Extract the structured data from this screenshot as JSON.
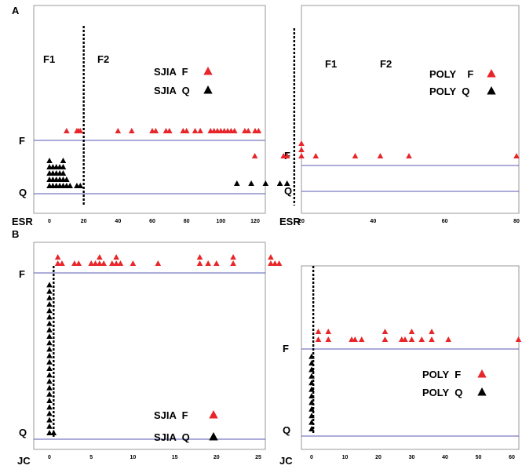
{
  "figure": {
    "panel_labels": [
      "A",
      "B"
    ],
    "axis_row_labels": [
      "ESR",
      "ESR",
      "JC",
      "JC"
    ]
  },
  "colors": {
    "flare": "#e8262a",
    "quiescent": "#000000",
    "frame": "#9a9a9a",
    "reference_line": "#5a5ab4",
    "cutoff_line": "#000000"
  },
  "chart_data": [
    {
      "type": "scatter",
      "panel": "A",
      "measure": "ESR",
      "xlim": [
        -5,
        125
      ],
      "xticks": [
        0,
        20,
        40,
        60,
        80,
        100,
        120
      ],
      "y_levels": [
        "Q",
        "F"
      ],
      "cutoff_x": 20,
      "region_labels": [
        "F1",
        "F2"
      ],
      "legend": [
        {
          "label": "SJIA  F",
          "series": "F",
          "marker": "triangle"
        },
        {
          "label": "SJIA  Q",
          "series": "Q",
          "marker": "triangle"
        }
      ],
      "series": [
        {
          "name": "F",
          "color": "#e8262a",
          "x": [
            10,
            16,
            17,
            18,
            40,
            48,
            60,
            62,
            68,
            70,
            78,
            80,
            85,
            88,
            94,
            96,
            98,
            100,
            102,
            104,
            106,
            108,
            114,
            116,
            120,
            122
          ]
        },
        {
          "name": "Q",
          "color": "#000000",
          "x": [
            0,
            0,
            0,
            0,
            0,
            2,
            2,
            2,
            2,
            4,
            4,
            4,
            4,
            6,
            6,
            6,
            6,
            8,
            8,
            8,
            8,
            8,
            10,
            10,
            12,
            16,
            18
          ]
        }
      ]
    },
    {
      "type": "scatter",
      "panel": "A",
      "measure": "ESR",
      "xlim": [
        0,
        82
      ],
      "xticks": [
        20,
        40,
        60,
        80
      ],
      "y_levels": [
        "Q",
        "F"
      ],
      "cutoff_x": 18,
      "region_labels": [
        "F1",
        "F2"
      ],
      "legend": [
        {
          "label": "POLY    F",
          "series": "F",
          "marker": "triangle"
        },
        {
          "label": "POLY  Q",
          "series": "Q",
          "marker": "triangle"
        }
      ],
      "series": [
        {
          "name": "F",
          "color": "#e8262a",
          "x": [
            7,
            15,
            16,
            20,
            20,
            20,
            24,
            35,
            42,
            50,
            80
          ]
        },
        {
          "name": "Q",
          "color": "#000000",
          "x": [
            2,
            6,
            10,
            14,
            16
          ]
        }
      ]
    },
    {
      "type": "scatter",
      "panel": "B",
      "measure": "JC",
      "xlim": [
        -1,
        28
      ],
      "xticks": [
        0,
        5,
        10,
        15,
        20,
        25
      ],
      "y_levels": [
        "Q",
        "F"
      ],
      "cutoff_x": 0.5,
      "legend": [
        {
          "label": "SJIA  F",
          "series": "F",
          "marker": "triangle"
        },
        {
          "label": "SJIA  Q",
          "series": "Q",
          "marker": "triangle"
        }
      ],
      "series": [
        {
          "name": "F",
          "color": "#e8262a",
          "x": [
            1,
            1,
            1.5,
            3,
            3.5,
            5,
            5.5,
            6,
            6,
            6.5,
            7.5,
            8,
            8,
            8.5,
            10,
            13,
            18,
            18,
            19,
            20,
            22,
            22,
            26.5,
            26.5,
            27,
            27.5
          ]
        },
        {
          "name": "Q",
          "color": "#000000",
          "x": [
            0,
            0,
            0,
            0,
            0,
            0,
            0,
            0,
            0,
            0,
            0,
            0,
            0,
            0,
            0,
            0,
            0,
            0,
            0,
            0,
            0,
            0,
            0,
            0,
            0.5
          ]
        }
      ]
    },
    {
      "type": "scatter",
      "panel": "B",
      "measure": "JC",
      "xlim": [
        -3,
        65
      ],
      "xticks": [
        0,
        10,
        20,
        30,
        40,
        50,
        60
      ],
      "y_levels": [
        "Q",
        "F"
      ],
      "cutoff_x": 0.5,
      "legend": [
        {
          "label": "POLY  F",
          "series": "F",
          "marker": "triangle"
        },
        {
          "label": "POLY  Q",
          "series": "Q",
          "marker": "triangle"
        }
      ],
      "series": [
        {
          "name": "F",
          "color": "#e8262a",
          "x": [
            2,
            2,
            5,
            5,
            12,
            13,
            15,
            22,
            22,
            27,
            28,
            30,
            30,
            33,
            36,
            36,
            41,
            62
          ]
        },
        {
          "name": "Q",
          "color": "#000000",
          "x": [
            0,
            0,
            0,
            0,
            0,
            0,
            0,
            0,
            0,
            0,
            0,
            0
          ]
        }
      ]
    }
  ]
}
